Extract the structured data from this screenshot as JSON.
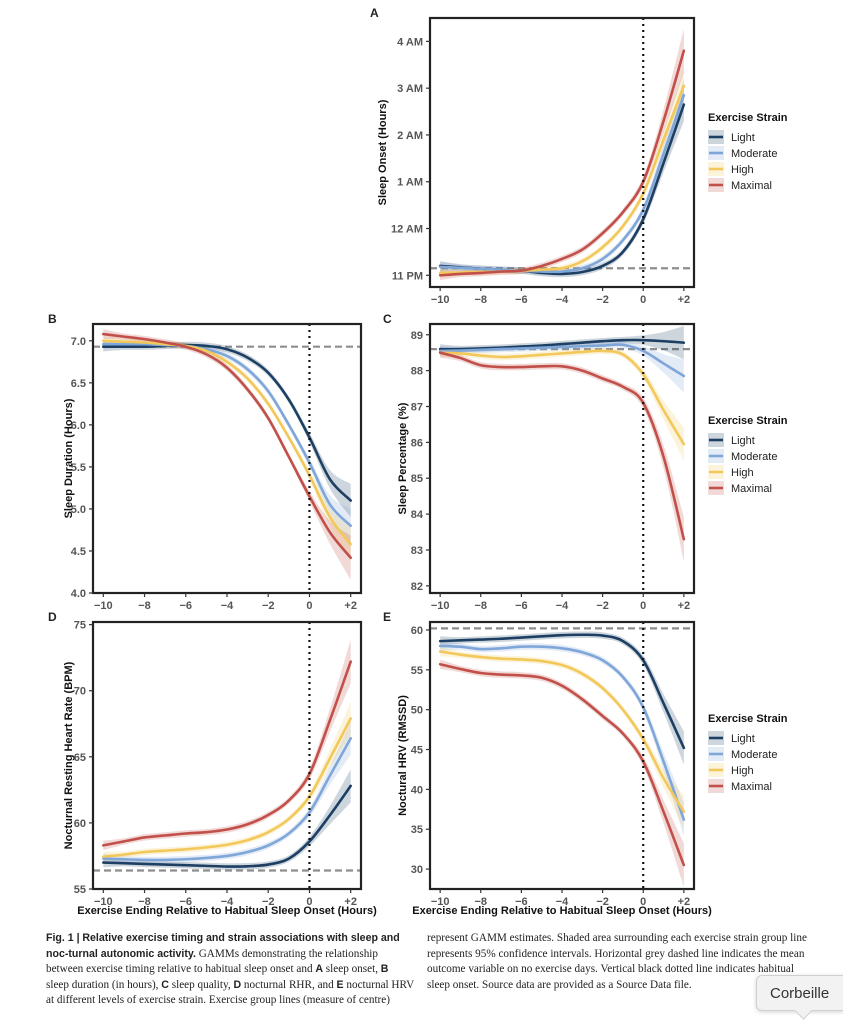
{
  "figure": {
    "caption_left": {
      "fig_label": "Fig. 1 |",
      "bold_title": "Relative exercise timing and strain associations with sleep and noc-turnal autonomic activity.",
      "text_1": "GAMMs demonstrating the relationship between exercise timing relative to habitual sleep onset and",
      "A": "A",
      "text_2": "sleep onset,",
      "B": "B",
      "text_3": "sleep duration (in hours),",
      "C": "C",
      "text_4": "sleep quality,",
      "D": "D",
      "text_5": "nocturnal RHR, and",
      "E": "E",
      "text_6": "nocturnal HRV at different levels of exercise strain. Exercise group lines (measure of centre)"
    },
    "caption_right": "represent GAMM estimates. Shaded area surrounding each exercise strain group line represents 95% confidence intervals. Horizontal grey dashed line indicates the mean outcome variable on no exercise days. Vertical black dotted line indicates habitual sleep onset. Source data are provided as a Source Data file."
  },
  "tooltip": {
    "text": "Corbeille"
  },
  "colors": {
    "Light": "#1d3f63",
    "Moderate": "#7fa6d8",
    "High": "#f3c85a",
    "Maximal": "#c1504a"
  },
  "chart_data": [
    {
      "panel": "A",
      "type": "line",
      "ylabel": "Sleep Onset (Hours)",
      "xticks": [
        "−10",
        "−8",
        "−6",
        "−4",
        "−2",
        "0",
        "+2"
      ],
      "ylim": [
        22.75,
        28.5
      ],
      "yticks": [
        23,
        24,
        25,
        26,
        27,
        28
      ],
      "ytick_labels": [
        "11 PM",
        "12 AM",
        "1 AM",
        "2 AM",
        "3 AM",
        "4 AM"
      ],
      "baseline": 23.15,
      "legend": {
        "title": "Exercise Strain",
        "placement": "right"
      },
      "x": [
        -10,
        -9,
        -8,
        -7,
        -6,
        -5,
        -4,
        -3,
        -2,
        -1,
        0,
        1,
        2
      ],
      "series": [
        {
          "name": "Light",
          "values": [
            23.2,
            23.17,
            23.14,
            23.12,
            23.1,
            23.05,
            23.03,
            23.07,
            23.2,
            23.5,
            24.2,
            25.4,
            26.65
          ]
        },
        {
          "name": "Moderate",
          "values": [
            23.18,
            23.16,
            23.14,
            23.12,
            23.1,
            23.08,
            23.08,
            23.15,
            23.35,
            23.75,
            24.4,
            25.6,
            26.85
          ]
        },
        {
          "name": "High",
          "values": [
            23.05,
            23.06,
            23.07,
            23.08,
            23.1,
            23.12,
            23.15,
            23.3,
            23.6,
            24.05,
            24.75,
            25.9,
            27.05
          ]
        },
        {
          "name": "Maximal",
          "values": [
            23.0,
            23.03,
            23.05,
            23.08,
            23.1,
            23.2,
            23.35,
            23.55,
            23.9,
            24.35,
            25.0,
            26.3,
            27.8
          ]
        }
      ]
    },
    {
      "panel": "B",
      "type": "line",
      "ylabel": "Sleep Duration (Hours)",
      "xticks": [
        "−10",
        "−8",
        "−6",
        "−4",
        "−2",
        "0",
        "+2"
      ],
      "ylim": [
        4.0,
        7.2
      ],
      "yticks": [
        4.0,
        4.5,
        5.0,
        5.5,
        6.0,
        6.5,
        7.0
      ],
      "ytick_labels": [
        "4.0",
        "4.5",
        "5.0",
        "5.5",
        "6.0",
        "6.5",
        "7.0"
      ],
      "baseline": 6.93,
      "x": [
        -10,
        -9,
        -8,
        -7,
        -6,
        -5,
        -4,
        -3,
        -2,
        -1,
        0,
        1,
        2
      ],
      "series": [
        {
          "name": "Light",
          "values": [
            6.93,
            6.93,
            6.93,
            6.94,
            6.95,
            6.94,
            6.9,
            6.8,
            6.62,
            6.3,
            5.85,
            5.35,
            5.1
          ]
        },
        {
          "name": "Moderate",
          "values": [
            6.96,
            6.96,
            6.96,
            6.95,
            6.94,
            6.9,
            6.82,
            6.66,
            6.4,
            6.0,
            5.55,
            5.05,
            4.8
          ]
        },
        {
          "name": "High",
          "values": [
            7.0,
            6.99,
            6.98,
            6.96,
            6.94,
            6.88,
            6.75,
            6.55,
            6.25,
            5.85,
            5.4,
            4.9,
            4.58
          ]
        },
        {
          "name": "Maximal",
          "values": [
            7.08,
            7.05,
            7.02,
            6.98,
            6.93,
            6.84,
            6.68,
            6.42,
            6.08,
            5.62,
            5.15,
            4.72,
            4.42
          ]
        }
      ]
    },
    {
      "panel": "C",
      "type": "line",
      "ylabel": "Sleep Percentage (%)",
      "xticks": [
        "−10",
        "−8",
        "−6",
        "−4",
        "−2",
        "0",
        "+2"
      ],
      "ylim": [
        81.8,
        89.3
      ],
      "yticks": [
        82,
        83,
        84,
        85,
        86,
        87,
        88,
        89
      ],
      "ytick_labels": [
        "82",
        "83",
        "84",
        "85",
        "86",
        "87",
        "88",
        "89"
      ],
      "baseline": 88.6,
      "legend": {
        "title": "Exercise Strain",
        "placement": "right"
      },
      "x": [
        -10,
        -9,
        -8,
        -7,
        -6,
        -5,
        -4,
        -3,
        -2,
        -1,
        0,
        1,
        2
      ],
      "series": [
        {
          "name": "Light",
          "values": [
            88.6,
            88.6,
            88.62,
            88.64,
            88.67,
            88.7,
            88.74,
            88.78,
            88.82,
            88.85,
            88.85,
            88.82,
            88.78
          ]
        },
        {
          "name": "Moderate",
          "values": [
            88.55,
            88.56,
            88.58,
            88.6,
            88.62,
            88.64,
            88.66,
            88.68,
            88.7,
            88.72,
            88.55,
            88.2,
            87.85
          ]
        },
        {
          "name": "High",
          "values": [
            88.5,
            88.48,
            88.42,
            88.38,
            88.4,
            88.44,
            88.48,
            88.52,
            88.55,
            88.45,
            87.9,
            86.9,
            85.95
          ]
        },
        {
          "name": "Maximal",
          "values": [
            88.5,
            88.35,
            88.15,
            88.1,
            88.1,
            88.12,
            88.12,
            88.0,
            87.78,
            87.55,
            87.1,
            85.6,
            83.3
          ]
        }
      ]
    },
    {
      "panel": "D",
      "type": "line",
      "ylabel": "Nocturnal Resting Heart Rate (BPM)",
      "xlabel": "Exercise Ending Relative to Habitual Sleep Onset (Hours)",
      "xticks": [
        "−10",
        "−8",
        "−6",
        "−4",
        "−2",
        "0",
        "+2"
      ],
      "ylim": [
        55.0,
        75.2
      ],
      "yticks": [
        55,
        60,
        65,
        70,
        75
      ],
      "ytick_labels": [
        "55",
        "60",
        "65",
        "70",
        "75"
      ],
      "baseline": 56.4,
      "x": [
        -10,
        -9,
        -8,
        -7,
        -6,
        -5,
        -4,
        -3,
        -2,
        -1,
        0,
        1,
        2
      ],
      "series": [
        {
          "name": "Light",
          "values": [
            57.0,
            56.95,
            56.9,
            56.85,
            56.8,
            56.75,
            56.7,
            56.72,
            56.85,
            57.3,
            58.6,
            60.6,
            62.8
          ]
        },
        {
          "name": "Moderate",
          "values": [
            57.3,
            57.25,
            57.2,
            57.2,
            57.25,
            57.35,
            57.5,
            57.8,
            58.3,
            59.2,
            60.8,
            63.6,
            66.4
          ]
        },
        {
          "name": "High",
          "values": [
            57.45,
            57.6,
            57.8,
            57.9,
            58.0,
            58.15,
            58.35,
            58.7,
            59.3,
            60.3,
            62.0,
            64.9,
            67.9
          ]
        },
        {
          "name": "Maximal",
          "values": [
            58.3,
            58.6,
            58.9,
            59.05,
            59.2,
            59.3,
            59.5,
            59.9,
            60.6,
            61.7,
            63.7,
            67.8,
            72.2
          ]
        }
      ]
    },
    {
      "panel": "E",
      "type": "line",
      "ylabel": "Noctural HRV (RMSSD)",
      "xlabel": "Exercise Ending Relative to Habitual Sleep Onset (Hours)",
      "xticks": [
        "−10",
        "−8",
        "−6",
        "−4",
        "−2",
        "0",
        "+2"
      ],
      "ylim": [
        27.5,
        61.0
      ],
      "yticks": [
        30,
        35,
        40,
        45,
        50,
        55,
        60
      ],
      "ytick_labels": [
        "30",
        "35",
        "40",
        "45",
        "50",
        "55",
        "60"
      ],
      "baseline": 60.2,
      "legend": {
        "title": "Exercise Strain",
        "placement": "right"
      },
      "x": [
        -10,
        -9,
        -8,
        -7,
        -6,
        -5,
        -4,
        -3,
        -2,
        -1,
        0,
        1,
        2
      ],
      "series": [
        {
          "name": "Light",
          "values": [
            58.6,
            58.7,
            58.8,
            58.9,
            59.05,
            59.2,
            59.35,
            59.4,
            59.3,
            58.6,
            56.2,
            50.8,
            45.2
          ]
        },
        {
          "name": "Moderate",
          "values": [
            58.0,
            57.9,
            57.6,
            57.7,
            57.9,
            57.9,
            57.7,
            57.2,
            56.2,
            54.1,
            50.3,
            43.5,
            36.2
          ]
        },
        {
          "name": "High",
          "values": [
            57.3,
            56.9,
            56.6,
            56.4,
            56.3,
            56.1,
            55.6,
            54.5,
            52.7,
            50.0,
            46.3,
            41.4,
            37.2
          ]
        },
        {
          "name": "Maximal",
          "values": [
            55.7,
            55.1,
            54.6,
            54.4,
            54.3,
            54.0,
            53.0,
            51.3,
            49.2,
            47.0,
            43.5,
            37.2,
            30.5
          ]
        }
      ]
    }
  ]
}
